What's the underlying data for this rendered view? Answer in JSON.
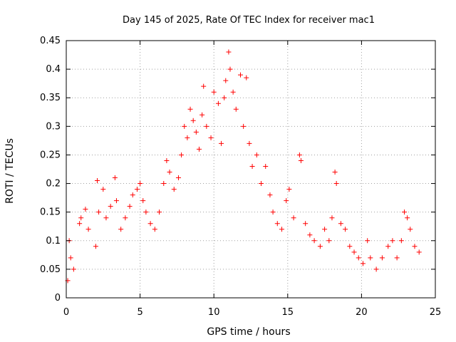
{
  "chart_data": {
    "type": "scatter",
    "title": "Day 145 of 2025, Rate Of TEC Index for receiver mac1",
    "xlabel": "GPS time / hours",
    "ylabel": "ROTI / TECUs",
    "xlim": [
      0,
      25
    ],
    "ylim": [
      0,
      0.45
    ],
    "xticks": [
      0,
      5,
      10,
      15,
      20,
      25
    ],
    "xtick_labels": [
      "0",
      "5",
      "10",
      "15",
      "20",
      "25"
    ],
    "yticks": [
      0,
      0.05,
      0.1,
      0.15,
      0.2,
      0.25,
      0.3,
      0.35,
      0.4,
      0.45
    ],
    "ytick_labels": [
      "0",
      "0.05",
      "0.1",
      "0.15",
      "0.2",
      "0.25",
      "0.3",
      "0.35",
      "0.4",
      "0.45"
    ],
    "grid": true,
    "marker": "+",
    "color": "#ff0000",
    "series": [
      {
        "values": [
          [
            0.1,
            0.03
          ],
          [
            0.2,
            0.1
          ],
          [
            0.3,
            0.07
          ],
          [
            0.5,
            0.05
          ],
          [
            0.9,
            0.13
          ],
          [
            1.0,
            0.14
          ],
          [
            1.3,
            0.155
          ],
          [
            1.5,
            0.12
          ],
          [
            2.0,
            0.09
          ],
          [
            2.1,
            0.205
          ],
          [
            2.2,
            0.15
          ],
          [
            2.5,
            0.19
          ],
          [
            2.7,
            0.14
          ],
          [
            3.0,
            0.16
          ],
          [
            3.3,
            0.21
          ],
          [
            3.4,
            0.17
          ],
          [
            3.7,
            0.12
          ],
          [
            4.0,
            0.14
          ],
          [
            4.3,
            0.16
          ],
          [
            4.5,
            0.18
          ],
          [
            4.8,
            0.19
          ],
          [
            5.0,
            0.2
          ],
          [
            5.2,
            0.17
          ],
          [
            5.4,
            0.15
          ],
          [
            5.7,
            0.13
          ],
          [
            6.0,
            0.12
          ],
          [
            6.3,
            0.15
          ],
          [
            6.6,
            0.2
          ],
          [
            6.8,
            0.24
          ],
          [
            7.0,
            0.22
          ],
          [
            7.3,
            0.19
          ],
          [
            7.6,
            0.21
          ],
          [
            7.8,
            0.25
          ],
          [
            8.0,
            0.3
          ],
          [
            8.2,
            0.28
          ],
          [
            8.4,
            0.33
          ],
          [
            8.6,
            0.31
          ],
          [
            8.8,
            0.29
          ],
          [
            9.0,
            0.26
          ],
          [
            9.2,
            0.32
          ],
          [
            9.3,
            0.37
          ],
          [
            9.5,
            0.3
          ],
          [
            9.8,
            0.28
          ],
          [
            10.0,
            0.36
          ],
          [
            10.3,
            0.34
          ],
          [
            10.5,
            0.27
          ],
          [
            10.7,
            0.35
          ],
          [
            10.8,
            0.38
          ],
          [
            11.0,
            0.43
          ],
          [
            11.1,
            0.4
          ],
          [
            11.3,
            0.36
          ],
          [
            11.5,
            0.33
          ],
          [
            11.8,
            0.39
          ],
          [
            12.0,
            0.3
          ],
          [
            12.2,
            0.385
          ],
          [
            12.4,
            0.27
          ],
          [
            12.6,
            0.23
          ],
          [
            12.9,
            0.25
          ],
          [
            13.2,
            0.2
          ],
          [
            13.5,
            0.23
          ],
          [
            13.8,
            0.18
          ],
          [
            14.0,
            0.15
          ],
          [
            14.3,
            0.13
          ],
          [
            14.6,
            0.12
          ],
          [
            14.9,
            0.17
          ],
          [
            15.1,
            0.19
          ],
          [
            15.4,
            0.14
          ],
          [
            15.8,
            0.25
          ],
          [
            15.9,
            0.24
          ],
          [
            16.2,
            0.13
          ],
          [
            16.5,
            0.11
          ],
          [
            16.8,
            0.1
          ],
          [
            17.2,
            0.09
          ],
          [
            17.5,
            0.12
          ],
          [
            17.8,
            0.1
          ],
          [
            18.0,
            0.14
          ],
          [
            18.2,
            0.22
          ],
          [
            18.3,
            0.2
          ],
          [
            18.6,
            0.13
          ],
          [
            18.9,
            0.12
          ],
          [
            19.2,
            0.09
          ],
          [
            19.5,
            0.08
          ],
          [
            19.8,
            0.07
          ],
          [
            20.1,
            0.06
          ],
          [
            20.4,
            0.1
          ],
          [
            20.6,
            0.07
          ],
          [
            21.0,
            0.05
          ],
          [
            21.4,
            0.07
          ],
          [
            21.8,
            0.09
          ],
          [
            22.1,
            0.1
          ],
          [
            22.4,
            0.07
          ],
          [
            22.7,
            0.1
          ],
          [
            22.9,
            0.15
          ],
          [
            23.1,
            0.14
          ],
          [
            23.3,
            0.12
          ],
          [
            23.6,
            0.09
          ],
          [
            23.9,
            0.08
          ]
        ]
      }
    ]
  }
}
